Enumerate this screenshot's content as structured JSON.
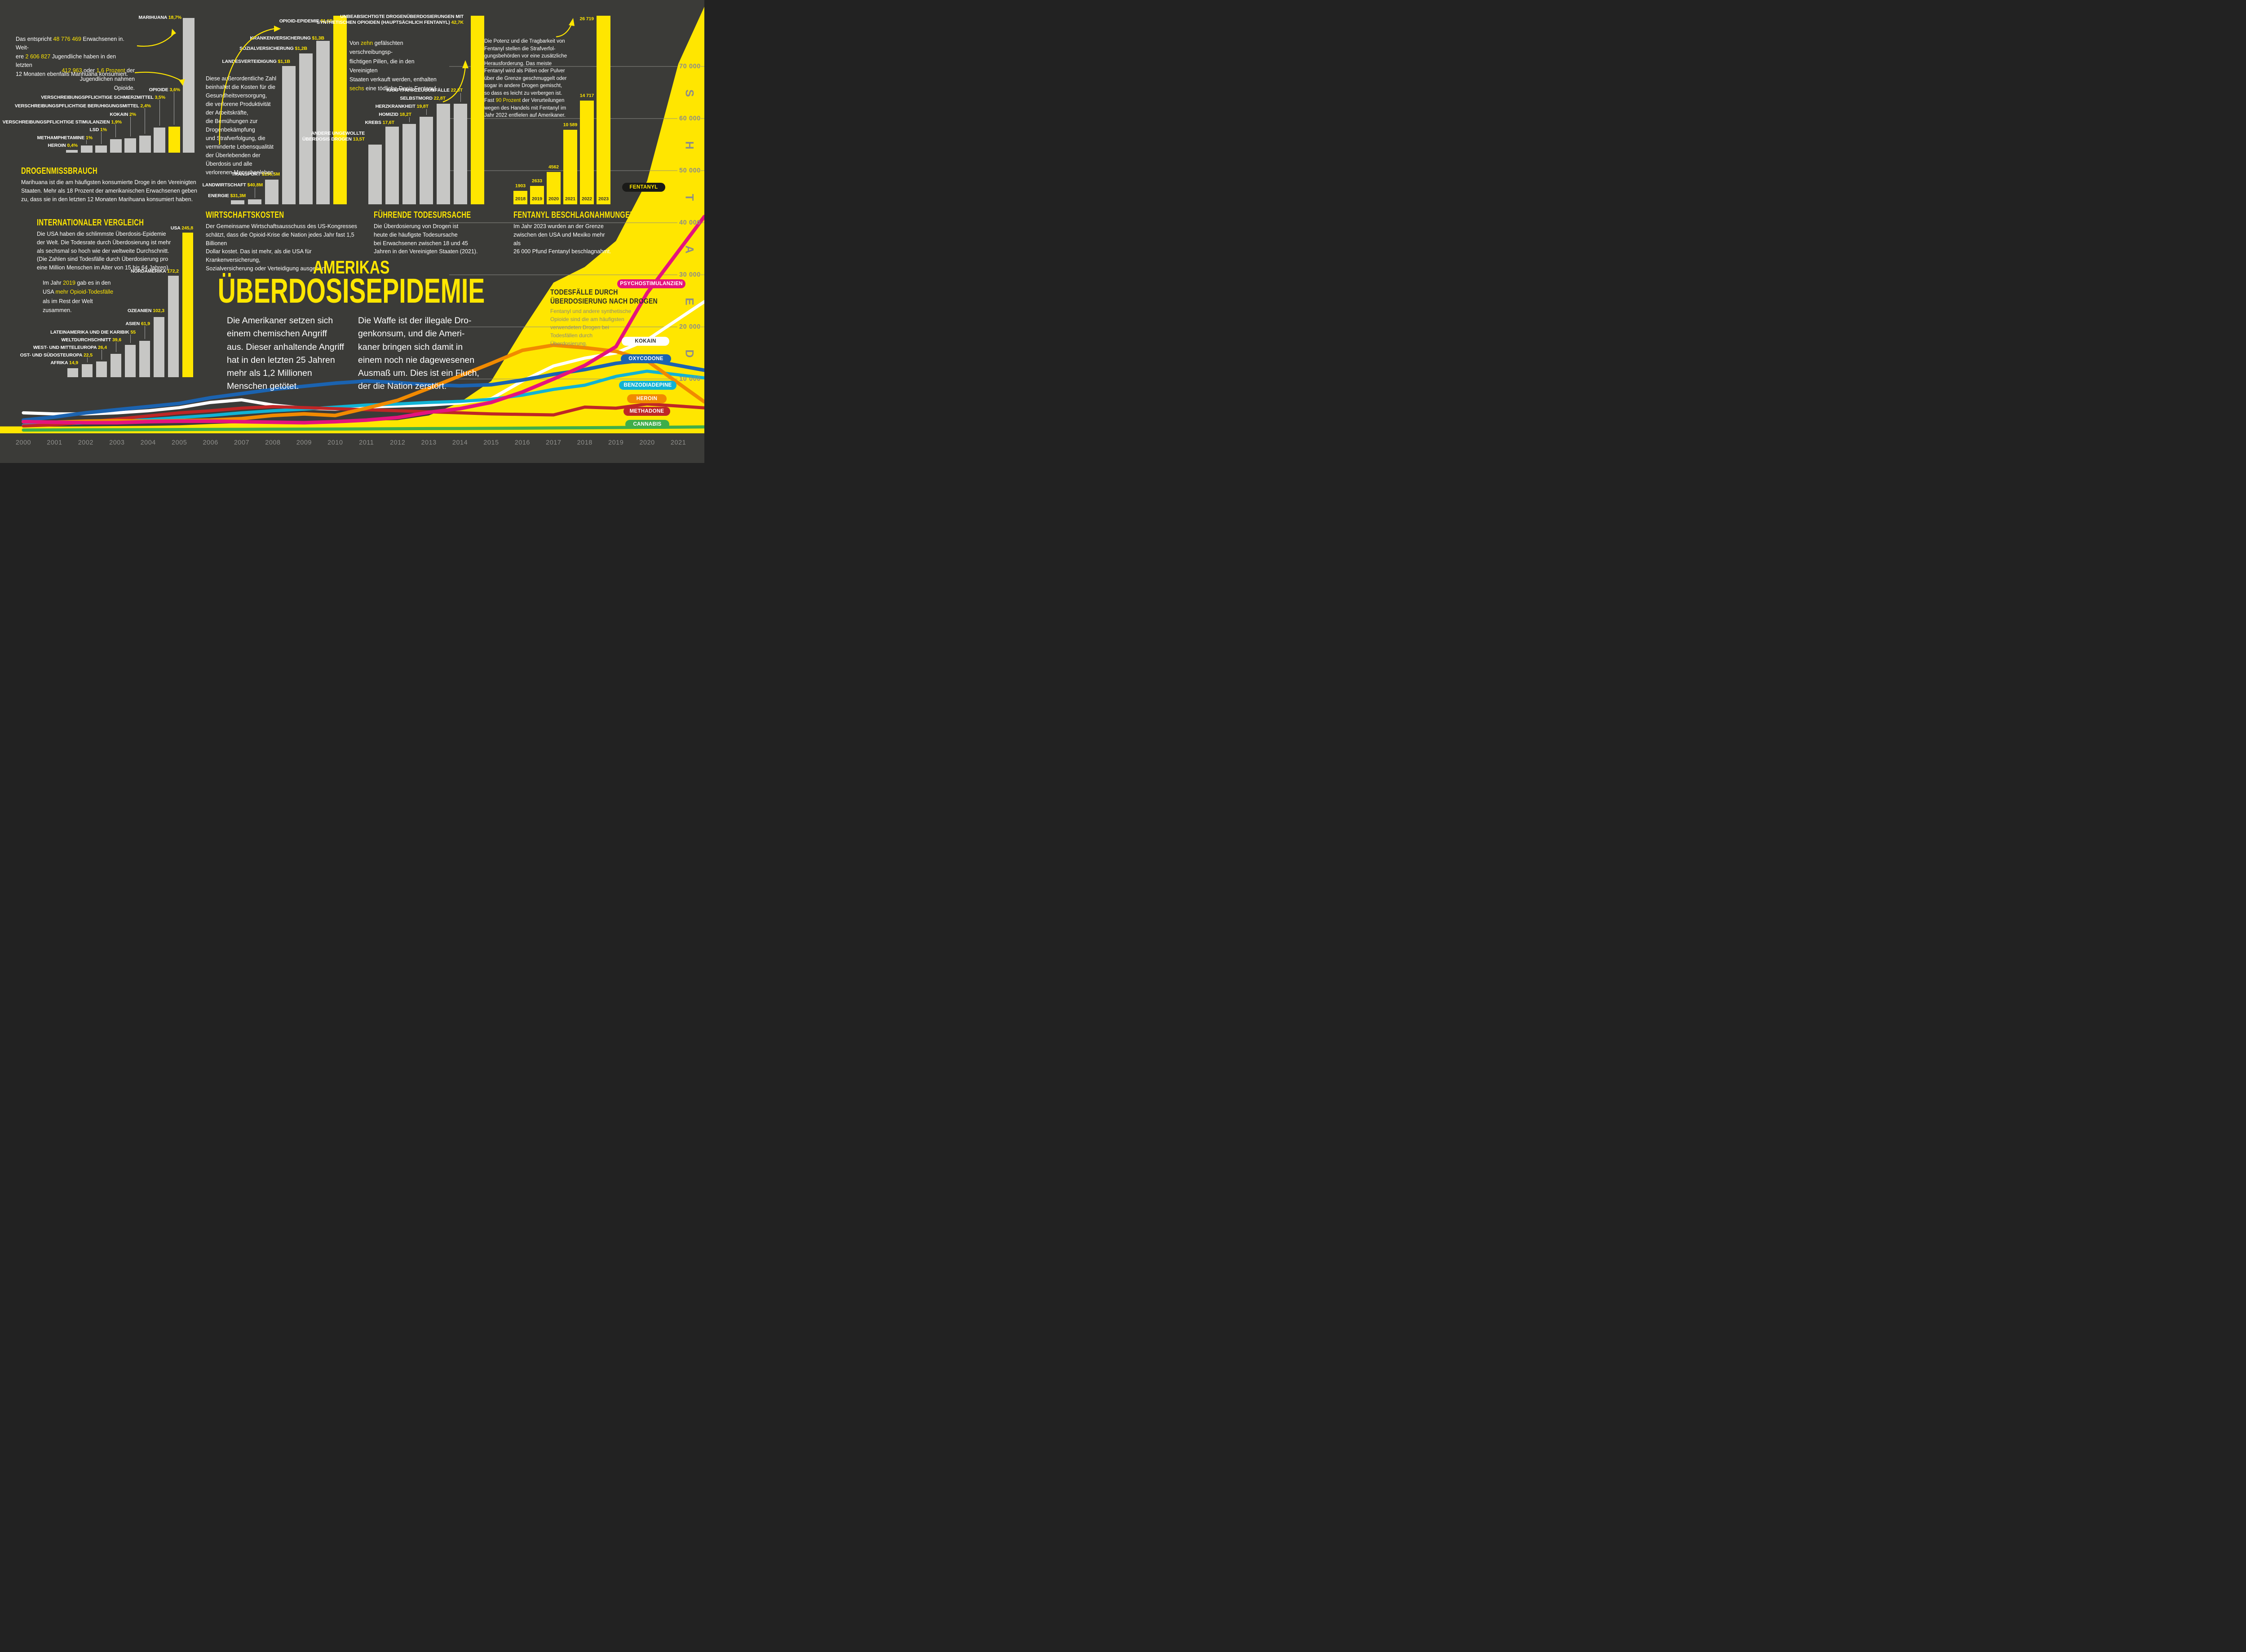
{
  "colors": {
    "background": "#3b3b38",
    "yellow": "#ffe600",
    "bar_gray": "#c7c7c5",
    "white": "#ffffff",
    "axis_gray": "#8d8d89",
    "dark_text": "#33332f",
    "gray_on_yellow": "#8a8a7e",
    "pink": "#e5137d",
    "blue": "#1b63b0",
    "teal": "#11b3d4",
    "orange": "#f18a00",
    "red": "#bf2626",
    "green": "#3fae49",
    "black": "#1a1a18"
  },
  "header": {
    "title_line1": "AMERIKAS",
    "title_line2": "ÜBERDOSISEPIDEMIE"
  },
  "intro": {
    "col1": "Die Amerikaner setzen sich\neinem chemischen Angriff\naus. Dieser anhaltende Angriff\nhat in den letzten 25 Jahren\nmehr als 1,2 Millionen\nMenschen getötet.",
    "col2": "Die Waffe ist der illegale Dro-\ngenkonsum, und die Ameri-\nkaner bringen sich damit in\neinem noch nie dagewesenen\nAusmaß um. Dies ist ein Fluch,\nder die Nation zerstört."
  },
  "sections": {
    "drogenmissbrauch": {
      "heading": "DROGENMISSBRAUCH",
      "body": "Marihuana ist die am häufigsten konsumierte Droge in den Vereinigten\nStaaten. Mehr als 18 Prozent der amerikanischen Erwachsenen geben\nzu, dass sie in den letzten 12 Monaten Marihuana konsumiert haben.",
      "note1": [
        {
          "t": "Das entspricht ",
          "c": "w"
        },
        {
          "t": "48 776 469",
          "c": "y"
        },
        {
          "t": " Erwachsenen in. Weit-\nere ",
          "c": "w"
        },
        {
          "t": "2 606 827",
          "c": "y"
        },
        {
          "t": " Jugendliche haben in den letzten\n12 Monaten ebenfalls Marihuana konsumiert.",
          "c": "w"
        }
      ],
      "note2": [
        {
          "t": "412 963",
          "c": "y"
        },
        {
          "t": " oder ",
          "c": "w"
        },
        {
          "t": "1,6 Prozent",
          "c": "y"
        },
        {
          "t": " der\nJugendlichen nahmen Opioide.",
          "c": "w"
        }
      ]
    },
    "wirtschaftskosten": {
      "heading": "WIRTSCHAFTSKOSTEN",
      "body": "Der Gemeinsame Wirtschaftsausschuss des US-Kongresses\nschätzt, dass die Opioid-Krise die Nation jedes Jahr fast 1,5 Billionen\nDollar kostet. Das ist mehr, als die USA für Krankenversicherung,\nSozialversicherung oder Verteidigung ausgeben.",
      "side_note": "Diese außerordentliche Zahl\nbeinhaltet die Kosten für die\nGesundheitsversorgung,\ndie verlorene Produktivität\nder Arbeitskräfte,\ndie Bemühungen zur\nDrogenbekämpfung\nund Strafverfolgung, die\nverminderte Lebensqualität\nder Überlebenden der\nÜberdosis und alle\nverlorenen Menschenleben."
    },
    "todesursache": {
      "heading": "FÜHRENDE TODESURSACHE",
      "body": "Die Überdosierung von Drogen ist\nheute die häufigste Todesursache\nbei Erwachsenen zwischen 18 und 45\nJahren in den Vereinigten Staaten (2021).",
      "note": [
        {
          "t": "Von ",
          "c": "w"
        },
        {
          "t": "zehn",
          "c": "y"
        },
        {
          "t": " gefälschten verschreibungsp-\nflichtigen Pillen, die in den Vereinigten\nStaaten verkauft werden, enthalten\n",
          "c": "w"
        },
        {
          "t": "sechs",
          "c": "y"
        },
        {
          "t": " eine tödliche Dosis Fentanyl.",
          "c": "w"
        }
      ]
    },
    "fentanyl": {
      "heading": "FENTANYL BESCHLAGNAHMUNGEN",
      "body": "Im Jahr 2023 wurden an der Grenze\nzwischen den USA und Mexiko mehr als\n26 000 Pfund Fentanyl beschlagnahmt.",
      "note": [
        {
          "t": "Die Potenz und die Tragbarkeit von\nFentanyl stellen die Strafverfol-\ngungsbehörden vor eine zusätzliche\nHerausforderung. Das meiste\nFentanyl wird als Pillen oder Pulver\nüber die Grenze geschmuggelt oder\nsogar in andere Drogen gemischt,\nso dass es leicht zu verbergen ist.\nFast ",
          "c": "w"
        },
        {
          "t": "90 Prozent",
          "c": "y"
        },
        {
          "t": " der Verurteilungen\nwegen des Handels mit Fentanyl im\nJahr 2022 entfielen auf Amerikaner.",
          "c": "w"
        }
      ]
    },
    "international": {
      "heading": "INTERNATIONALER VERGLEICH",
      "body": "Die USA haben die schlimmste Überdosis-Epidemie\nder Welt. Die Todesrate durch Überdosierung ist mehr\nals sechsmal so hoch wie der weltweite Durchschnitt.\n(Die Zahlen sind Todesfälle durch Überdosierung pro\neine Million Menschen im Alter von 15 bis 64 Jahren).",
      "note2": [
        {
          "t": "Im Jahr ",
          "c": "w"
        },
        {
          "t": "2019",
          "c": "y"
        },
        {
          "t": " gab es in den\nUSA ",
          "c": "w"
        },
        {
          "t": "mehr Opioid-Todesfälle",
          "c": "y"
        },
        {
          "t": "\nals im Rest der Welt zusammen.",
          "c": "w"
        }
      ]
    },
    "deaths_by_drug": {
      "heading": "TODESFÄLLE DURCH\nÜBERDOSIERUNG NACH DROGEN",
      "body": "Fentanyl und andere synthetische\nOpioide sind die am häufigsten\nverwendeten Drogen bei\nTodesfällen durch\nÜberdosierung."
    }
  },
  "chart_data": [
    {
      "id": "drogenmissbrauch",
      "type": "bar",
      "title": "DROGENMISSBRAUCH",
      "unit": "% der Erwachsenen, letzte 12 Monate",
      "categories": [
        "HEROIN",
        "METHAMPHETAMINE",
        "LSD",
        "VERSCHREIBUNGSPFLICHTIGE STIMULANZIEN",
        "KOKAIN",
        "VERSCHREIBUNGSPFLICHTIGE BERUHIGUNGSMITTEL",
        "VERSCHREIBUNGSPFLICHTIGE SCHMERZMITTEL",
        "OPIOIDE",
        "MARIHUANA"
      ],
      "values": [
        0.4,
        1,
        1,
        1.9,
        2,
        2.4,
        3.5,
        3.6,
        18.7
      ],
      "displays": [
        "0,4%",
        "1%",
        "1%",
        "1,9%",
        "2%",
        "2,4%",
        "3,5%",
        "3,6%",
        "18,7%"
      ],
      "highlight_index": 7
    },
    {
      "id": "wirtschaftskosten",
      "type": "bar",
      "title": "WIRTSCHAFTSKOSTEN",
      "unit": "US-Dollar pro Jahr",
      "categories": [
        "ENERGIE",
        "LANDWIRTSCHAFT",
        "TRANSPORT",
        "LANDESVERTEIDIGUNG",
        "SOZIALVERSICHERUNG",
        "KRANKENVERSICHERUNG",
        "OPIOID-EPIDEMIE"
      ],
      "values": [
        31.3,
        40.8,
        196.5,
        1100,
        1200,
        1300,
        1500
      ],
      "displays": [
        "$31,3M",
        "$40,8M",
        "$196,5M",
        "$1,1B",
        "$1,2B",
        "$1,3B",
        "$1,5B"
      ],
      "highlight_index": 6
    },
    {
      "id": "fuehrende_todesursache",
      "type": "bar",
      "title": "FÜHRENDE TODESURSACHE",
      "unit": "Todesfälle (Tausend)",
      "categories": [
        "ANDERE UNGEWOLLTE ÜBERDOSIS DROGEN",
        "KREBS",
        "HOMIZID",
        "HERZKRANKHEIT",
        "SELBSTMORD",
        "KRAFTFAHRZEUGUNFÄLLE",
        "UNBEABSICHTIGTE DROGENÜBERDOSIERUNGEN MIT SYNTHETISCHEN OPIOIDEN (HAUPTSÄCHLICH FENTANYL)"
      ],
      "values": [
        13.5,
        17.6,
        18.2,
        19.8,
        22.8,
        22.8,
        42.7
      ],
      "displays": [
        "13,5T",
        "17,6T",
        "18,2T",
        "19,8T",
        "22,8T",
        "22,8T",
        "42,7K"
      ],
      "highlight_index": 6,
      "multiline": {
        "top": [
          [
            "UNBEABSICHTIGTE DROGENÜBERDOSIERUNGEN MIT",
            ""
          ],
          [
            "SYNTHETISCHEN OPIOIDEN (HAUPTSÄCHLICH FENTANYL) ",
            "42,7K"
          ]
        ],
        "other": [
          [
            "ANDERE UNGEWOLLTE",
            ""
          ],
          [
            "ÜBERDOSIS DROGEN ",
            "13,5T"
          ]
        ]
      }
    },
    {
      "id": "fentanyl_beschlagnahmungen",
      "type": "bar",
      "title": "FENTANYL BESCHLAGNAHMUNGEN",
      "unit": "Pfund",
      "categories": [
        "2018",
        "2019",
        "2020",
        "2021",
        "2022",
        "2023"
      ],
      "values": [
        1903,
        2633,
        4562,
        10589,
        14717,
        26719
      ],
      "displays": [
        "1903",
        "2633",
        "4562",
        "10 589",
        "14 717",
        "26 719"
      ],
      "highlight_index": -1
    },
    {
      "id": "internationaler_vergleich",
      "type": "bar",
      "title": "INTERNATIONALER VERGLEICH",
      "unit": "Überdosis-Todesfälle pro Mio. Menschen (15–64 Jahre)",
      "categories": [
        "AFRIKA",
        "OST- UND SÜDOSTEUROPA",
        "WEST- UND MITTELEUROPA",
        "WELTDURCHSCHNITT",
        "LATEINAMERIKA UND DIE KARIBIK",
        "ASIEN",
        "OZEANIEN",
        "NORDAMERIKA",
        "USA"
      ],
      "values": [
        14.9,
        22.5,
        26.4,
        39.6,
        55,
        61.9,
        102.3,
        172.2,
        245.8
      ],
      "displays": [
        "14,9",
        "22,5",
        "26,4",
        "39,6",
        "55",
        "61,9",
        "102,3",
        "172,2",
        "245,8"
      ],
      "highlight_index": 8
    },
    {
      "id": "todesfaelle_nach_drogen",
      "type": "area-line",
      "title": "TODESFÄLLE DURCH ÜBERDOSIERUNG NACH DROGEN",
      "x": [
        2000,
        2001,
        2002,
        2003,
        2004,
        2005,
        2006,
        2007,
        2008,
        2009,
        2010,
        2011,
        2012,
        2013,
        2014,
        2015,
        2016,
        2017,
        2018,
        2019,
        2020,
        2021
      ],
      "ylim": [
        0,
        75000
      ],
      "y_ticks": [
        "70 000",
        "60 000",
        "50 000",
        "40 000",
        "30 000",
        "20 000",
        "10 000"
      ],
      "vertical_label": "DEATHS",
      "legend_position": "right",
      "series": [
        {
          "name": "FENTANYL",
          "style": "area",
          "color": "#ffe600",
          "values": [
            900,
            850,
            900,
            950,
            1000,
            1100,
            1350,
            1550,
            1450,
            1650,
            1800,
            2000,
            2100,
            3000,
            5500,
            9600,
            19400,
            28500,
            31500,
            36500,
            48000,
            70500
          ]
        },
        {
          "name": "KOKAIN",
          "style": "line",
          "color": "#ffffff",
          "values": [
            3500,
            3300,
            3300,
            3500,
            3900,
            4500,
            5500,
            6000,
            5000,
            4400,
            4200,
            4600,
            4800,
            5000,
            5400,
            6200,
            9600,
            12500,
            14000,
            15000,
            17500,
            21500
          ]
        },
        {
          "name": "BENZODIADEPINE",
          "style": "line",
          "color": "#11b3d4",
          "values": [
            1100,
            1300,
            1600,
            1900,
            2200,
            2600,
            3000,
            3500,
            3900,
            4200,
            4600,
            5000,
            5200,
            5500,
            5700,
            6100,
            6900,
            8000,
            8800,
            10500,
            11500,
            10800
          ]
        },
        {
          "name": "OXYCODONE",
          "style": "line",
          "color": "#1b63b0",
          "values": [
            2100,
            2700,
            3500,
            4100,
            4700,
            5300,
            6400,
            7200,
            8000,
            8600,
            9200,
            9600,
            9300,
            8900,
            8700,
            8900,
            9800,
            10900,
            11800,
            13000,
            13700,
            12600
          ]
        },
        {
          "name": "METHADONE",
          "style": "line",
          "color": "#bf2626",
          "values": [
            990,
            1200,
            1700,
            2300,
            2900,
            3500,
            3900,
            4400,
            4700,
            4500,
            4300,
            4100,
            3900,
            3700,
            3500,
            3300,
            3200,
            3100,
            4600,
            4400,
            5200,
            4800
          ]
        },
        {
          "name": "CANNABIS",
          "style": "line",
          "color": "#3fae49",
          "values": [
            200,
            220,
            250,
            260,
            280,
            300,
            320,
            340,
            360,
            380,
            400,
            420,
            450,
            480,
            500,
            530,
            560,
            600,
            640,
            680,
            720,
            760
          ]
        },
        {
          "name": "HEROIN",
          "style": "line",
          "color": "#f18a00",
          "values": [
            1800,
            1700,
            1900,
            2000,
            1900,
            2000,
            2100,
            2400,
            3000,
            3300,
            3000,
            4400,
            5900,
            8200,
            10600,
            13000,
            15500,
            16500,
            16000,
            15300,
            13500,
            9200
          ]
        },
        {
          "name": "PSYCHOSTIMULANZIEN",
          "style": "line",
          "color": "#e5137d",
          "values": [
            1800,
            1700,
            1600,
            1600,
            1800,
            1900,
            1900,
            1800,
            1700,
            1600,
            1800,
            2100,
            2600,
            3600,
            4300,
            5500,
            7500,
            10000,
            12600,
            16200,
            26500,
            34500
          ]
        }
      ]
    }
  ],
  "legend_pills": [
    {
      "label": "FENTANYL",
      "bg": "#1a1a18",
      "fg": "#ffe600"
    },
    {
      "label": "PSYCHOSTIMULANZIEN",
      "bg": "#e5137d",
      "fg": "#ffffff"
    },
    {
      "label": "KOKAIN",
      "bg": "#ffffff",
      "fg": "#2f2f2b"
    },
    {
      "label": "OXYCODONE",
      "bg": "#1b63b0",
      "fg": "#ffffff"
    },
    {
      "label": "BENZODIADEPINE",
      "bg": "#11b3d4",
      "fg": "#ffffff"
    },
    {
      "label": "HEROIN",
      "bg": "#f18a00",
      "fg": "#ffffff"
    },
    {
      "label": "METHADONE",
      "bg": "#bf2626",
      "fg": "#ffffff"
    },
    {
      "label": "CANNABIS",
      "bg": "#3fae49",
      "fg": "#ffffff"
    }
  ],
  "axis": {
    "years": [
      "2000",
      "2001",
      "2002",
      "2003",
      "2004",
      "2005",
      "2006",
      "2007",
      "2008",
      "2009",
      "2010",
      "2011",
      "2012",
      "2013",
      "2014",
      "2015",
      "2016",
      "2017",
      "2018",
      "2019",
      "2020",
      "2021"
    ]
  }
}
